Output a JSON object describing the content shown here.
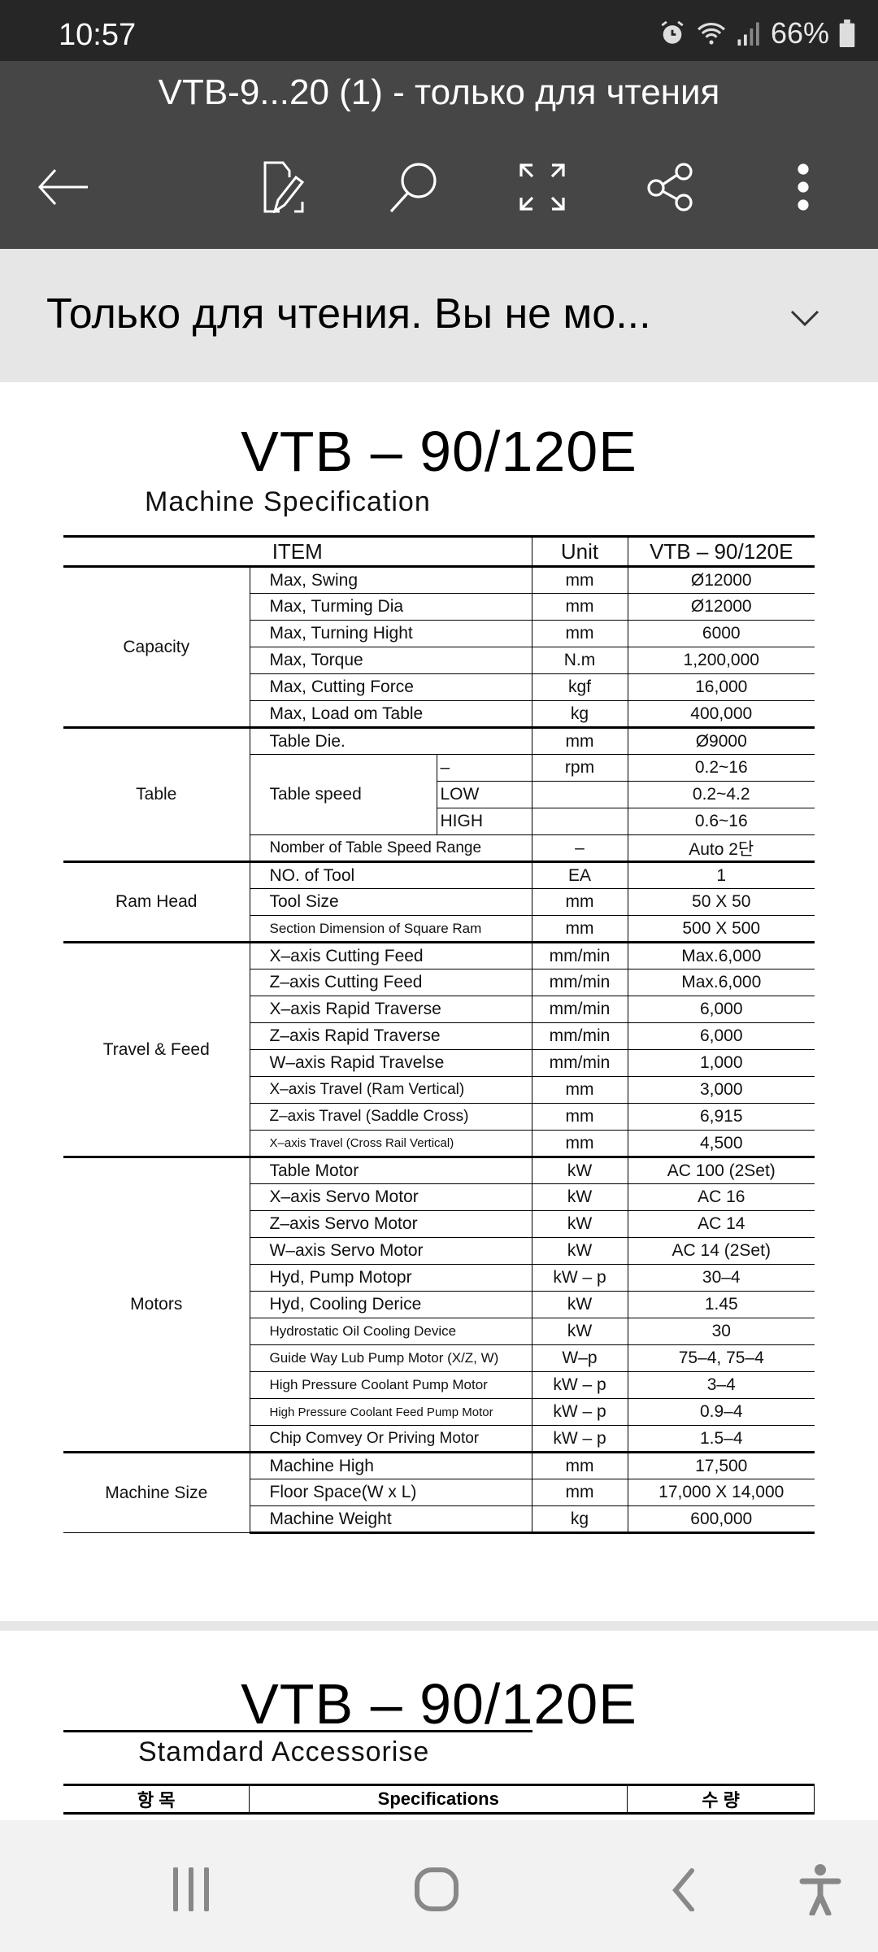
{
  "status_bar": {
    "time": "10:57",
    "battery": "66%"
  },
  "app_bar": {
    "title": "VTB-9...20 (1) - только для чтения",
    "icons": [
      "back-arrow-icon",
      "edit-document-icon",
      "search-icon",
      "fullscreen-icon",
      "share-icon",
      "more-vertical-icon"
    ]
  },
  "banner": {
    "text": "Только для чтения. Вы не мо..."
  },
  "page1": {
    "title": "VTB – 90/120E",
    "subtitle": "Machine Specification",
    "headers": {
      "item": "ITEM",
      "unit": "Unit",
      "model": "VTB – 90/120E"
    },
    "groups": [
      {
        "name": "Capacity",
        "rows": [
          {
            "item": "Max, Swing",
            "unit": "mm",
            "value": "Ø12000"
          },
          {
            "item": "Max, Turming Dia",
            "unit": "mm",
            "value": "Ø12000"
          },
          {
            "item": "Max, Turning Hight",
            "unit": "mm",
            "value": "6000"
          },
          {
            "item": "Max, Torque",
            "unit": "N.m",
            "value": "1,200,000"
          },
          {
            "item": "Max, Cutting  Force",
            "unit": "kgf",
            "value": "16,000"
          },
          {
            "item": "Max, Load om Table",
            "unit": "kg",
            "value": "400,000"
          }
        ]
      },
      {
        "name": "Table",
        "rows": [
          {
            "item": "Table Die.",
            "unit": "mm",
            "value": "Ø9000"
          },
          {
            "item": "Table speed",
            "sub": "–",
            "unit": "rpm",
            "value": "0.2~16"
          },
          {
            "item": "Table speed",
            "sub": "LOW",
            "unit": "",
            "value": "0.2~4.2"
          },
          {
            "item": "Table speed",
            "sub": "HIGH",
            "unit": "",
            "value": "0.6~16"
          },
          {
            "item": "Nomber of Table Speed Range",
            "unit": "–",
            "value": "Auto 2단"
          }
        ]
      },
      {
        "name": "Ram Head",
        "rows": [
          {
            "item": "NO. of Tool",
            "unit": "EA",
            "value": "1"
          },
          {
            "item": "Tool Size",
            "unit": "mm",
            "value": "50 X 50"
          },
          {
            "item": "Section Dimension of Square Ram",
            "unit": "mm",
            "value": "500 X 500"
          }
        ]
      },
      {
        "name": "Travel & Feed",
        "rows": [
          {
            "item": "X–axis Cutting Feed",
            "unit": "mm/min",
            "value": "Max.6,000"
          },
          {
            "item": "Z–axis Cutting Feed",
            "unit": "mm/min",
            "value": "Max.6,000"
          },
          {
            "item": "X–axis Rapid Traverse",
            "unit": "mm/min",
            "value": "6,000"
          },
          {
            "item": "Z–axis Rapid Traverse",
            "unit": "mm/min",
            "value": "6,000"
          },
          {
            "item": "W–axis Rapid Travelse",
            "unit": "mm/min",
            "value": "1,000"
          },
          {
            "item": "X–axis Travel (Ram Vertical)",
            "unit": "mm",
            "value": "3,000"
          },
          {
            "item": "Z–axis Travel (Saddle Cross)",
            "unit": "mm",
            "value": "6,915"
          },
          {
            "item": "X–axis Travel (Cross Rail Vertical)",
            "unit": "mm",
            "value": "4,500"
          }
        ]
      },
      {
        "name": "Motors",
        "rows": [
          {
            "item": "Table Motor",
            "unit": "kW",
            "value": "AC 100 (2Set)"
          },
          {
            "item": "X–axis Servo Motor",
            "unit": "kW",
            "value": "AC 16"
          },
          {
            "item": "Z–axis Servo Motor",
            "unit": "kW",
            "value": "AC 14"
          },
          {
            "item": "W–axis Servo Motor",
            "unit": "kW",
            "value": "AC 14 (2Set)"
          },
          {
            "item": "Hyd, Pump Motopr",
            "unit": "kW – p",
            "value": "30–4"
          },
          {
            "item": "Hyd, Cooling Derice",
            "unit": "kW",
            "value": "1.45"
          },
          {
            "item": "Hydrostatic Oil Cooling Device",
            "unit": "kW",
            "value": "30"
          },
          {
            "item": "Guide Way Lub Pump Motor (X/Z, W)",
            "unit": "W–p",
            "value": "75–4, 75–4"
          },
          {
            "item": "High Pressure Coolant Pump Motor",
            "unit": "kW – p",
            "value": "3–4"
          },
          {
            "item": "High Pressure Coolant Feed Pump Motor",
            "unit": "kW – p",
            "value": "0.9–4"
          },
          {
            "item": "Chip Comvey Or Priving Motor",
            "unit": "kW – p",
            "value": "1.5–4"
          }
        ]
      },
      {
        "name": "Machine Size",
        "rows": [
          {
            "item": "Machine High",
            "unit": "mm",
            "value": "17,500"
          },
          {
            "item": "Floor Space(W x L)",
            "unit": "mm",
            "value": "17,000 X 14,000"
          },
          {
            "item": "Machine Weight",
            "unit": "kg",
            "value": "600,000"
          }
        ]
      }
    ]
  },
  "page2": {
    "title": "VTB – 90/120E",
    "subtitle": "Stamdard Accessorise",
    "headers": {
      "item": "항  목",
      "spec": "Specifications",
      "qty": "수  량"
    }
  },
  "nav_bar": {
    "icons": [
      "recent-apps-icon",
      "home-icon",
      "back-icon",
      "accessibility-icon"
    ]
  }
}
